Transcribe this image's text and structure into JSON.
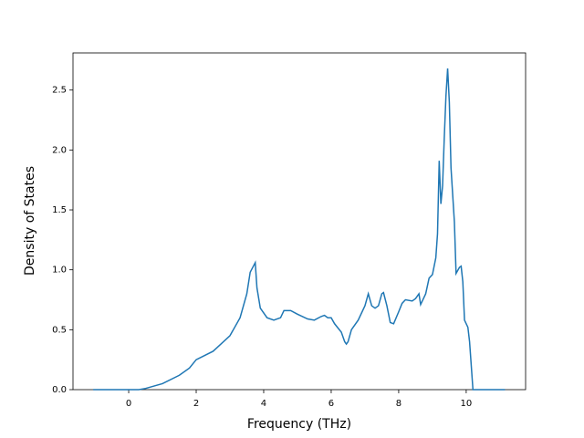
{
  "chart_data": {
    "type": "line",
    "x_label": "Frequency (THz)",
    "y_label": "Density of States",
    "xlim": [
      -1.65,
      11.76
    ],
    "ylim": [
      0,
      2.81
    ],
    "xticks": [
      0,
      2,
      4,
      6,
      8,
      10
    ],
    "yticks": [
      {
        "value": 0,
        "label": "0.0"
      },
      {
        "value": 0.5,
        "label": "0.5"
      },
      {
        "value": 1,
        "label": "1.0"
      },
      {
        "value": 1.5,
        "label": "1.5"
      },
      {
        "value": 2,
        "label": "2.0"
      },
      {
        "value": 2.5,
        "label": "2.5"
      }
    ],
    "series": [
      {
        "color": "#1f77b4",
        "x": [
          -1.05,
          0,
          0.3,
          0.5,
          1.0,
          1.5,
          1.8,
          2.0,
          2.5,
          3.0,
          3.3,
          3.5,
          3.6,
          3.75,
          3.8,
          3.9,
          4.1,
          4.3,
          4.5,
          4.6,
          4.8,
          5.0,
          5.3,
          5.5,
          5.7,
          5.8,
          5.9,
          6.0,
          6.1,
          6.3,
          6.4,
          6.45,
          6.5,
          6.6,
          6.8,
          7.0,
          7.1,
          7.2,
          7.3,
          7.4,
          7.5,
          7.55,
          7.65,
          7.75,
          7.85,
          8.0,
          8.1,
          8.2,
          8.4,
          8.5,
          8.6,
          8.65,
          8.8,
          8.9,
          9.0,
          9.1,
          9.15,
          9.2,
          9.25,
          9.3,
          9.35,
          9.4,
          9.45,
          9.5,
          9.55,
          9.65,
          9.7,
          9.8,
          9.85,
          9.9,
          9.95,
          10.05,
          10.1,
          10.15,
          10.2,
          11.15
        ],
        "values": [
          0,
          0,
          0,
          0.01,
          0.05,
          0.12,
          0.18,
          0.25,
          0.32,
          0.45,
          0.6,
          0.8,
          0.98,
          1.06,
          0.85,
          0.68,
          0.6,
          0.58,
          0.6,
          0.66,
          0.66,
          0.63,
          0.59,
          0.58,
          0.61,
          0.62,
          0.6,
          0.6,
          0.55,
          0.48,
          0.4,
          0.38,
          0.4,
          0.5,
          0.58,
          0.7,
          0.8,
          0.7,
          0.68,
          0.7,
          0.8,
          0.81,
          0.7,
          0.56,
          0.55,
          0.65,
          0.72,
          0.75,
          0.74,
          0.76,
          0.8,
          0.71,
          0.8,
          0.93,
          0.96,
          1.1,
          1.3,
          1.91,
          1.55,
          1.7,
          2.1,
          2.45,
          2.68,
          2.4,
          1.85,
          1.4,
          0.97,
          1.02,
          1.03,
          0.9,
          0.58,
          0.52,
          0.4,
          0.2,
          0,
          0
        ]
      }
    ]
  }
}
